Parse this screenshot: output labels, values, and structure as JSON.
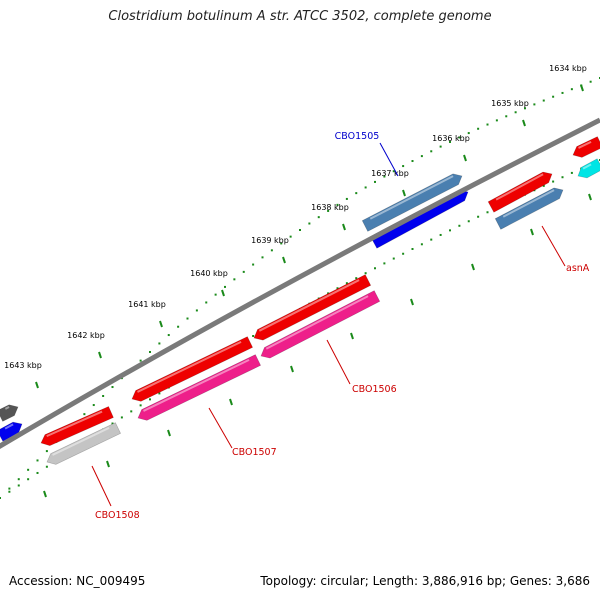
{
  "title": "Clostridium botulinum A str. ATCC 3502, complete genome",
  "footer": {
    "accession": "Accession: NC_009495",
    "summary": "Topology: circular; Length: 3,886,916 bp; Genes: 3,686"
  },
  "kbp_ticks": [
    {
      "label": "1634 kbp",
      "pos": 1634
    },
    {
      "label": "1635 kbp",
      "pos": 1635
    },
    {
      "label": "1636 kbp",
      "pos": 1636
    },
    {
      "label": "1637 kbp",
      "pos": 1637
    },
    {
      "label": "1638 kbp",
      "pos": 1638
    },
    {
      "label": "1639 kbp",
      "pos": 1639
    },
    {
      "label": "1640 kbp",
      "pos": 1640
    },
    {
      "label": "1641 kbp",
      "pos": 1641
    },
    {
      "label": "1642 kbp",
      "pos": 1642
    },
    {
      "label": "1643 kbp",
      "pos": 1643
    }
  ],
  "gene_labels": [
    {
      "name": "CBO1505",
      "color": "#0000cc"
    },
    {
      "name": "asnA",
      "color": "#cc0000"
    },
    {
      "name": "CBO1506",
      "color": "#cc0000"
    },
    {
      "name": "CBO1507",
      "color": "#cc0000"
    },
    {
      "name": "CBO1508",
      "color": "#cc0000"
    }
  ],
  "colors": {
    "backbone": "#7a7a7a",
    "tick": "#1a8a1a",
    "cds_red": "#ee0000",
    "cds_pink": "#ee1f8a",
    "cds_steel": "#4a7fb0",
    "cds_blue": "#0000ee",
    "cds_cyan": "#00e5e5",
    "cds_gray": "#c4c4c4",
    "cds_dark": "#555555"
  }
}
